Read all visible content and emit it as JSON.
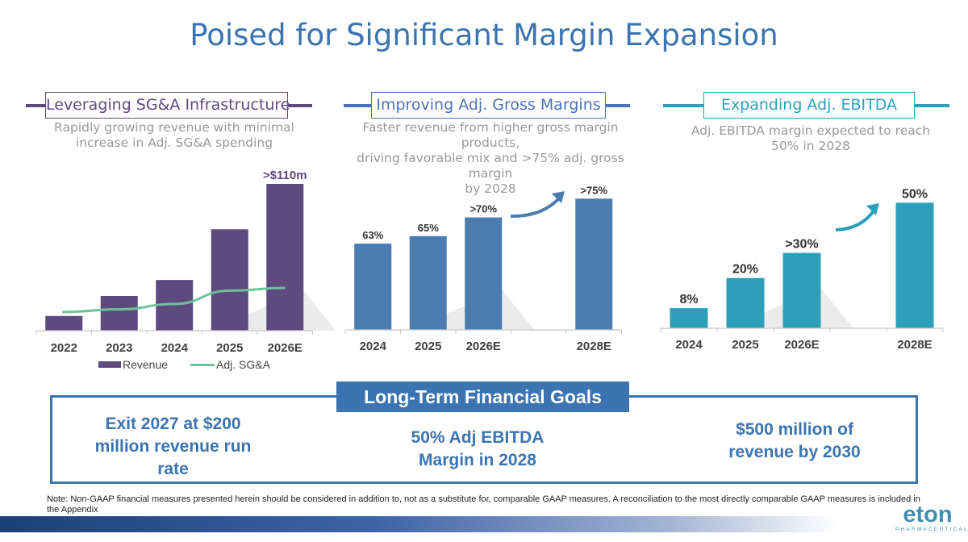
{
  "title": "Poised for Significant Margin Expansion",
  "colors": {
    "title": "#3b74b0",
    "revenue": "#5f4a80",
    "sga": "#6cc49a",
    "gross": "#4a7cb0",
    "ebitda": "#2c9fbb"
  },
  "sections": [
    {
      "header": "Leveraging SG&A Infrastructure",
      "description_lines": [
        "Rapidly growing revenue with minimal",
        "increase in Adj. SG&A spending"
      ]
    },
    {
      "header": "Improving Adj. Gross Margins",
      "description_lines": [
        "Faster revenue from higher gross margin products,",
        "driving favorable mix and >75% adj. gross margin",
        "by 2028"
      ]
    },
    {
      "header": "Expanding Adj. EBITDA",
      "description_lines": [
        "Adj. EBITDA margin expected to reach",
        "50% in 2028"
      ]
    }
  ],
  "chart_data": [
    {
      "type": "bar",
      "categories": [
        "2022",
        "2023",
        "2024",
        "2025",
        "2026E"
      ],
      "series": [
        {
          "name": "Revenue",
          "type": "bar",
          "values": [
            11,
            26,
            38,
            76,
            110
          ]
        },
        {
          "name": "Adj. SG&A",
          "type": "line",
          "values": [
            14,
            16,
            20,
            30,
            32
          ]
        }
      ],
      "data_labels": [
        "",
        "",
        "",
        "",
        ">$110m"
      ],
      "ylim": [
        0,
        110
      ],
      "legend": "bottom",
      "grid": false
    },
    {
      "type": "bar",
      "categories": [
        "2024",
        "2025",
        "2026E",
        "",
        "2028E"
      ],
      "values": [
        63,
        65,
        70,
        null,
        75
      ],
      "data_labels": [
        "63%",
        "65%",
        ">70%",
        "",
        ">75%"
      ],
      "ylim": [
        40,
        77
      ],
      "grid": false
    },
    {
      "type": "bar",
      "categories": [
        "2024",
        "2025",
        "2026E",
        "",
        "2028E"
      ],
      "values": [
        8,
        20,
        30,
        null,
        50
      ],
      "data_labels": [
        "8%",
        "20%",
        ">30%",
        "",
        "50%"
      ],
      "ylim": [
        0,
        53
      ],
      "grid": false
    }
  ],
  "legend": {
    "revenue": "Revenue",
    "sga": "Adj. SG&A"
  },
  "goals": {
    "title": "Long-Term Financial Goals",
    "items": [
      [
        "Exit 2027 at $200",
        "million revenue run",
        "rate"
      ],
      [
        "50% Adj EBITDA",
        "Margin in 2028"
      ],
      [
        "$500 million of",
        "revenue by 2030"
      ]
    ]
  },
  "note": "Note: Non-GAAP financial measures presented herein should be considered in addition to, not as a substitute for, comparable GAAP measures. A reconciliation to the most directly comparable GAAP measures is included in the Appendix",
  "logo": {
    "word": "eton",
    "sub": "PHARMACEUTICALS"
  }
}
